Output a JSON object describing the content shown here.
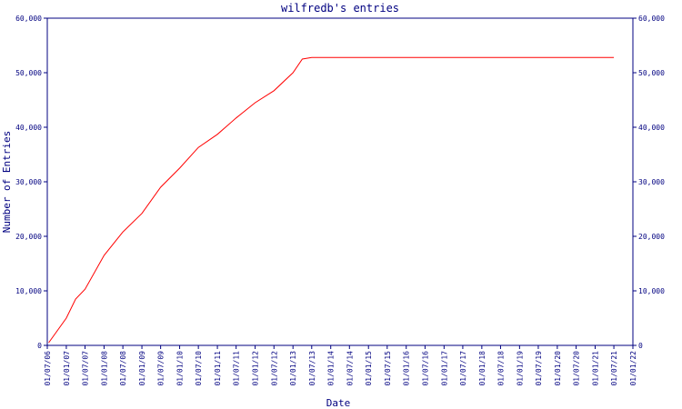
{
  "chart_data": {
    "type": "line",
    "title": "wilfredb's entries",
    "x_label": "Date",
    "y_label": "Number of Entries",
    "color": "#ff0000",
    "x": [
      "2006-07-15",
      "2007-01-01",
      "2007-04-01",
      "2007-07-01",
      "2008-01-01",
      "2008-07-01",
      "2009-01-01",
      "2009-07-01",
      "2010-01-01",
      "2010-07-01",
      "2011-01-01",
      "2011-07-01",
      "2012-01-01",
      "2012-07-01",
      "2013-01-01",
      "2013-04-01",
      "2013-07-01",
      "2021-07-01"
    ],
    "values": [
      500,
      5000,
      8500,
      10300,
      16500,
      20800,
      24200,
      29000,
      32500,
      36300,
      38700,
      41700,
      44500,
      46700,
      50000,
      52500,
      52800,
      52800
    ],
    "xlim": [
      "2006-07-01",
      "2022-01-01"
    ],
    "xticks": [
      {
        "value": "2006-07-01",
        "label": "01/07/06"
      },
      {
        "value": "2007-01-01",
        "label": "01/01/07"
      },
      {
        "value": "2007-07-01",
        "label": "01/07/07"
      },
      {
        "value": "2008-01-01",
        "label": "01/01/08"
      },
      {
        "value": "2008-07-01",
        "label": "01/07/08"
      },
      {
        "value": "2009-01-01",
        "label": "01/01/09"
      },
      {
        "value": "2009-07-01",
        "label": "01/07/09"
      },
      {
        "value": "2010-01-01",
        "label": "01/01/10"
      },
      {
        "value": "2010-07-01",
        "label": "01/07/10"
      },
      {
        "value": "2011-01-01",
        "label": "01/01/11"
      },
      {
        "value": "2011-07-01",
        "label": "01/07/11"
      },
      {
        "value": "2012-01-01",
        "label": "01/01/12"
      },
      {
        "value": "2012-07-01",
        "label": "01/07/12"
      },
      {
        "value": "2013-01-01",
        "label": "01/01/13"
      },
      {
        "value": "2013-07-01",
        "label": "01/07/13"
      },
      {
        "value": "2014-01-01",
        "label": "01/01/14"
      },
      {
        "value": "2014-07-01",
        "label": "01/07/14"
      },
      {
        "value": "2015-01-01",
        "label": "01/01/15"
      },
      {
        "value": "2015-07-01",
        "label": "01/07/15"
      },
      {
        "value": "2016-01-01",
        "label": "01/01/16"
      },
      {
        "value": "2016-07-01",
        "label": "01/07/16"
      },
      {
        "value": "2017-01-01",
        "label": "01/01/17"
      },
      {
        "value": "2017-07-01",
        "label": "01/07/17"
      },
      {
        "value": "2018-01-01",
        "label": "01/01/18"
      },
      {
        "value": "2018-07-01",
        "label": "01/07/18"
      },
      {
        "value": "2019-01-01",
        "label": "01/01/19"
      },
      {
        "value": "2019-07-01",
        "label": "01/07/19"
      },
      {
        "value": "2020-01-01",
        "label": "01/01/20"
      },
      {
        "value": "2020-07-01",
        "label": "01/07/20"
      },
      {
        "value": "2021-01-01",
        "label": "01/01/21"
      },
      {
        "value": "2021-07-01",
        "label": "01/07/21"
      },
      {
        "value": "2022-01-01",
        "label": "01/01/22"
      }
    ],
    "ylim": [
      0,
      60000
    ],
    "yticks": [
      0,
      {
        "value": 10000,
        "label": "10,000"
      },
      {
        "value": 20000,
        "label": "20,000"
      },
      {
        "value": 30000,
        "label": "30,000"
      },
      {
        "value": 40000,
        "label": "40,000"
      },
      {
        "value": 50000,
        "label": "50,000"
      },
      {
        "value": 60000,
        "label": "60,000"
      }
    ],
    "y2lim": [
      0,
      60000
    ],
    "y2ticks": [
      0,
      {
        "value": 10000,
        "label": "10,000"
      },
      {
        "value": 20000,
        "label": "20,000"
      },
      {
        "value": 30000,
        "label": "30,000"
      },
      {
        "value": 40000,
        "label": "40,000"
      },
      {
        "value": 50000,
        "label": "50,000"
      },
      {
        "value": 60000,
        "label": "60,000"
      }
    ]
  }
}
